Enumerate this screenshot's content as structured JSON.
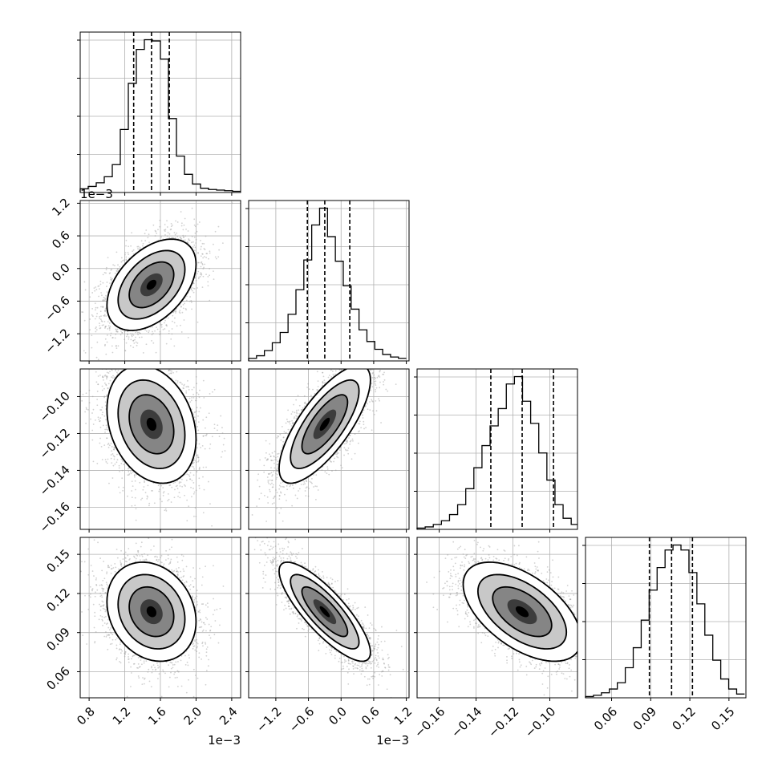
{
  "figure": {
    "type": "corner_plot",
    "grid": true,
    "parameters": [
      {
        "range": [
          0.0007,
          0.0025
        ],
        "ticks": [
          0.0008,
          0.0012,
          0.0016,
          0.002,
          0.0024
        ],
        "tick_labels": [
          "0.8",
          "1.2",
          "1.6",
          "2.0",
          "2.4"
        ],
        "offset_label": "1e−3"
      },
      {
        "range": [
          -0.0017,
          0.00125
        ],
        "ticks": [
          -0.0012,
          -0.0006,
          0.0,
          0.0006,
          0.0012
        ],
        "tick_labels": [
          "−1.2",
          "−0.6",
          "0.0",
          "0.6",
          "1.2"
        ],
        "offset_label": "1e−3"
      },
      {
        "range": [
          -0.172,
          -0.085
        ],
        "ticks": [
          -0.16,
          -0.14,
          -0.12,
          -0.1
        ],
        "tick_labels": [
          "−0.16",
          "−0.14",
          "−0.12",
          "−0.10"
        ],
        "offset_label": ""
      },
      {
        "range": [
          0.04,
          0.163
        ],
        "ticks": [
          0.06,
          0.09,
          0.12,
          0.15
        ],
        "tick_labels": [
          "0.06",
          "0.09",
          "0.12",
          "0.15"
        ],
        "offset_label": ""
      }
    ]
  },
  "chart_data": [
    {
      "type": "histogram",
      "panel": "0-0",
      "bin_edges": [
        0.0007,
        0.00079,
        0.00088,
        0.00097,
        0.00106,
        0.00115,
        0.00124,
        0.00133,
        0.00142,
        0.00151,
        0.0016,
        0.00169,
        0.00178,
        0.00187,
        0.00196,
        0.00205,
        0.00214,
        0.00223,
        0.00232,
        0.00241,
        0.0025
      ],
      "counts": [
        3,
        5,
        8,
        13,
        23,
        52,
        90,
        118,
        126,
        125,
        110,
        61,
        30,
        15,
        7,
        3.5,
        2.5,
        2,
        1.5,
        1
      ],
      "quantiles": [
        0.0013,
        0.0015,
        0.0017
      ]
    },
    {
      "type": "scatter_contour",
      "panel": "1-0",
      "mean": [
        0.0015,
        -0.0003
      ],
      "sd": [
        0.00025,
        0.00042
      ],
      "rho": 0.45,
      "n_points": 3500
    },
    {
      "type": "scatter_contour",
      "panel": "2-0",
      "mean": [
        0.0015,
        -0.115
      ],
      "sd": [
        0.00025,
        0.016
      ],
      "rho": -0.25,
      "n_points": 3500
    },
    {
      "type": "scatter_contour",
      "panel": "3-0",
      "mean": [
        0.0015,
        0.106
      ],
      "sd": [
        0.00025,
        0.019
      ],
      "rho": -0.2,
      "n_points": 3500
    },
    {
      "type": "histogram",
      "panel": "1-1",
      "bin_edges": [
        -0.0017,
        -0.001555,
        -0.00141,
        -0.001265,
        -0.00112,
        -0.000975,
        -0.00083,
        -0.000685,
        -0.00054,
        -0.000395,
        -0.00025,
        -0.000105,
        4e-05,
        0.000185,
        0.00033,
        0.000475,
        0.00062,
        0.000765,
        0.00091,
        0.001055,
        0.0012
      ],
      "counts": [
        2,
        4,
        8,
        14,
        22,
        36,
        55,
        78,
        105,
        118,
        96,
        77,
        58,
        40,
        24,
        15,
        9,
        5,
        3,
        2
      ],
      "quantiles": [
        -0.00062,
        -0.0003,
        0.00016
      ]
    },
    {
      "type": "scatter_contour",
      "panel": "2-1",
      "mean": [
        -0.0003,
        -0.115
      ],
      "sd": [
        0.00042,
        0.016
      ],
      "rho": 0.75,
      "n_points": 3500
    },
    {
      "type": "scatter_contour",
      "panel": "3-1",
      "mean": [
        -0.0003,
        0.106
      ],
      "sd": [
        0.00042,
        0.019
      ],
      "rho": -0.82,
      "n_points": 3500
    },
    {
      "type": "histogram",
      "panel": "2-2",
      "bin_edges": [
        -0.172,
        -0.1676,
        -0.1632,
        -0.1588,
        -0.1544,
        -0.15,
        -0.1456,
        -0.1412,
        -0.1368,
        -0.1324,
        -0.128,
        -0.1236,
        -0.1192,
        -0.1148,
        -0.1104,
        -0.106,
        -0.1016,
        -0.0972,
        -0.0928,
        -0.0884,
        -0.085
      ],
      "counts": [
        1,
        2,
        4,
        7,
        12,
        20,
        33,
        50,
        68,
        84,
        98,
        118,
        124,
        104,
        86,
        62,
        40,
        20,
        9,
        4
      ],
      "quantiles": [
        -0.132,
        -0.115,
        -0.098
      ]
    },
    {
      "type": "scatter_contour",
      "panel": "3-2",
      "mean": [
        -0.115,
        0.106
      ],
      "sd": [
        0.016,
        0.019
      ],
      "rho": -0.55,
      "n_points": 3500
    },
    {
      "type": "histogram",
      "panel": "3-3",
      "bin_edges": [
        0.04,
        0.0461,
        0.0522,
        0.0583,
        0.0644,
        0.0705,
        0.0766,
        0.0827,
        0.0888,
        0.0949,
        0.101,
        0.1071,
        0.1132,
        0.1193,
        0.1254,
        0.1315,
        0.1376,
        0.1437,
        0.1498,
        0.1559,
        0.162
      ],
      "counts": [
        1,
        2,
        4,
        7,
        12,
        24,
        40,
        62,
        86,
        104,
        118,
        122,
        118,
        100,
        75,
        50,
        30,
        15,
        7,
        3
      ],
      "quantiles": [
        0.089,
        0.106,
        0.122
      ]
    }
  ]
}
